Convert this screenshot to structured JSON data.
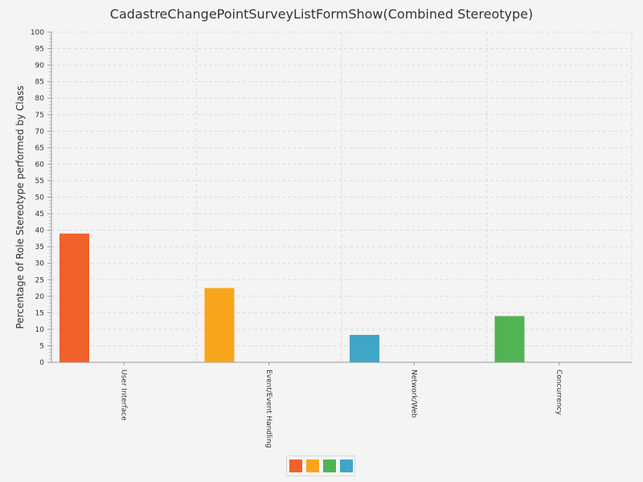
{
  "chart_data": {
    "type": "bar",
    "title": "CadastreChangePointSurveyListFormShow(Combined Stereotype)",
    "xlabel": "",
    "ylabel": "Percentage of Role Stereotype performed by Class",
    "ylim": [
      0,
      100
    ],
    "ytick_step": 5,
    "grid": true,
    "categories": [
      "User Interface",
      "Event/Event Handling",
      "Network/Web",
      "Concurrency"
    ],
    "values": [
      39,
      22.5,
      8.3,
      14
    ],
    "bar_colors": [
      "#f0612b",
      "#f8a51c",
      "#3fa6c6",
      "#52b355"
    ],
    "legend": {
      "placement": "bottom-center",
      "swatch_colors": [
        "#f0612b",
        "#f8a51c",
        "#52b355",
        "#3fa6c6"
      ]
    }
  }
}
